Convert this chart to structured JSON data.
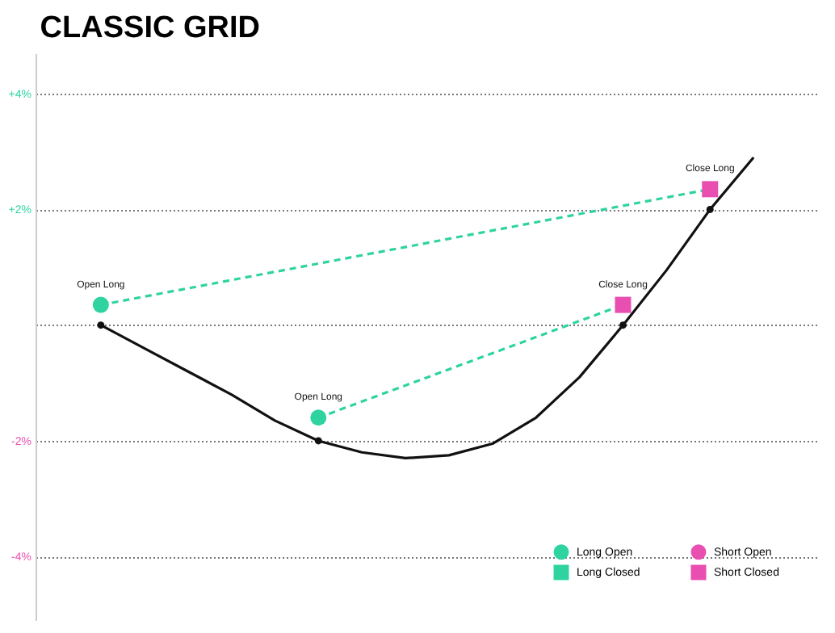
{
  "chart_data": {
    "type": "line",
    "title": "CLASSIC GRID",
    "categories": [
      null,
      null,
      null,
      null,
      null,
      null,
      null,
      null,
      null,
      null,
      null,
      null,
      null,
      null,
      null,
      null,
      null,
      null
    ],
    "ylim": [
      -5.1,
      4.7
    ],
    "yticks": [
      {
        "value": 4,
        "label": "+4%"
      },
      {
        "value": 2,
        "label": "+2%"
      },
      {
        "value": 0,
        "label": null
      },
      {
        "value": -2,
        "label": "-2%"
      },
      {
        "value": -4,
        "label": "-4%"
      }
    ],
    "grid": "y",
    "tick_labels": "y",
    "legend": "bottom right",
    "series": [
      {
        "color": "#111111",
        "line_style": "solid",
        "values": [
          null,
          0,
          -0.4,
          -0.8,
          -1.2,
          -1.65,
          -2.0,
          -2.2,
          -2.3,
          -2.25,
          -2.05,
          -1.6,
          -0.9,
          0,
          0.95,
          2.0,
          2.9,
          null
        ]
      },
      {
        "type": "scatter",
        "color": "#111111",
        "marker": "circle",
        "values": [
          null,
          0,
          null,
          null,
          null,
          null,
          -2.0,
          null,
          null,
          null,
          null,
          null,
          null,
          0,
          null,
          2.0,
          null,
          null
        ]
      },
      {
        "type": "line",
        "color": "#2ed3a0",
        "line_style": "dashed",
        "values": [
          null,
          0.35,
          null,
          null,
          null,
          null,
          null,
          null,
          null,
          null,
          null,
          null,
          null,
          null,
          null,
          2.35,
          null,
          null
        ]
      },
      {
        "type": "line",
        "color": "#2ed3a0",
        "line_style": "dashed",
        "values": [
          null,
          null,
          null,
          null,
          null,
          null,
          -1.6,
          null,
          null,
          null,
          null,
          null,
          null,
          0.35,
          null,
          null,
          null,
          null
        ]
      },
      {
        "name": "Long Open",
        "type": "scatter",
        "color": "#2ed3a0",
        "marker": "circle",
        "values": [
          null,
          0.35,
          null,
          null,
          null,
          null,
          -1.6,
          null,
          null,
          null,
          null,
          null,
          null,
          null,
          null,
          null,
          null,
          null
        ],
        "value_labels": [
          null,
          "Open Long",
          null,
          null,
          null,
          null,
          "Open Long",
          null,
          null,
          null,
          null,
          null,
          null,
          null,
          null,
          null,
          null,
          null
        ]
      },
      {
        "name": "Long Closed",
        "type": "scatter",
        "color": "#2ed3a0",
        "marker": "square",
        "values": [
          null,
          null,
          null,
          null,
          null,
          null,
          null,
          null,
          null,
          null,
          null,
          null,
          null,
          null,
          null,
          null,
          null,
          null
        ]
      },
      {
        "name": "Short Open",
        "type": "scatter",
        "color": "#e94fb0",
        "marker": "circle",
        "values": [
          null,
          null,
          null,
          null,
          null,
          null,
          null,
          null,
          null,
          null,
          null,
          null,
          null,
          null,
          null,
          null,
          null,
          null
        ]
      },
      {
        "name": "Short Closed",
        "type": "scatter",
        "color": "#e94fb0",
        "marker": "square",
        "values": [
          null,
          null,
          null,
          null,
          null,
          null,
          null,
          null,
          null,
          null,
          null,
          null,
          null,
          0.35,
          null,
          2.35,
          null,
          null
        ],
        "value_labels": [
          null,
          null,
          null,
          null,
          null,
          null,
          null,
          null,
          null,
          null,
          null,
          null,
          null,
          "Close Long",
          null,
          "Close Long",
          null,
          null
        ]
      }
    ]
  }
}
